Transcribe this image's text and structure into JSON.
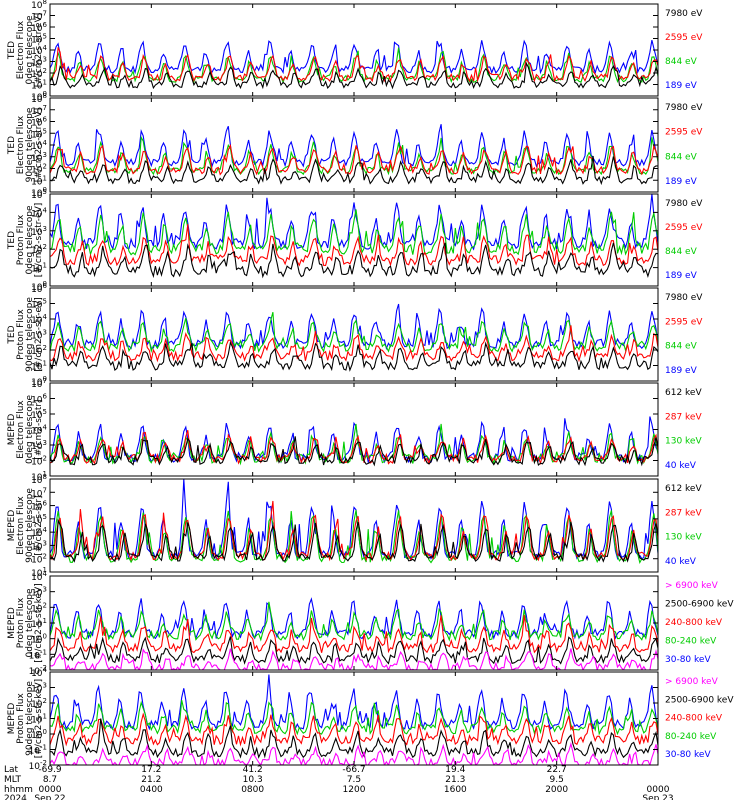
{
  "chart_data": [
    {
      "type": "line",
      "ylabel": [
        "TED",
        "Electron Flux",
        "0deg telescope",
        "[#/cm2-s-str-eV]"
      ],
      "yscale": "log",
      "ylim_exp": [
        0,
        8
      ],
      "ytick_exponents": [
        0,
        1,
        2,
        3,
        4,
        5,
        6,
        7,
        8
      ],
      "series": [
        {
          "name": "7980 eV",
          "color": "#000000",
          "base_exp": 1.0,
          "spread": 1.3
        },
        {
          "name": "2595 eV",
          "color": "#ff0000",
          "base_exp": 1.6,
          "spread": 1.8
        },
        {
          "name": "844 eV",
          "color": "#00cc00",
          "base_exp": 1.5,
          "spread": 2.0
        },
        {
          "name": "189 eV",
          "color": "#0000ff",
          "base_exp": 2.3,
          "spread": 2.3
        }
      ]
    },
    {
      "type": "line",
      "ylabel": [
        "TED",
        "Electron Flux",
        "90deg telescope",
        "[#/cm2-s-str-eV]"
      ],
      "yscale": "log",
      "ylim_exp": [
        0,
        8
      ],
      "ytick_exponents": [
        0,
        1,
        2,
        3,
        4,
        5,
        6,
        7,
        8
      ],
      "series": [
        {
          "name": "7980 eV",
          "color": "#000000",
          "base_exp": 1.0,
          "spread": 1.5
        },
        {
          "name": "2595 eV",
          "color": "#ff0000",
          "base_exp": 1.8,
          "spread": 2.0
        },
        {
          "name": "844 eV",
          "color": "#00cc00",
          "base_exp": 1.8,
          "spread": 2.2
        },
        {
          "name": "189 eV",
          "color": "#0000ff",
          "base_exp": 2.5,
          "spread": 2.6
        }
      ]
    },
    {
      "type": "line",
      "ylabel": [
        "TED",
        "Proton Flux",
        "0deg telescope",
        "[#/cm2-s-str-eV]"
      ],
      "yscale": "log",
      "ylim_exp": [
        0,
        5
      ],
      "ytick_exponents": [
        0,
        1,
        2,
        3,
        4,
        5
      ],
      "series": [
        {
          "name": "7980 eV",
          "color": "#000000",
          "base_exp": 0.8,
          "spread": 1.2
        },
        {
          "name": "2595 eV",
          "color": "#ff0000",
          "base_exp": 1.4,
          "spread": 1.2
        },
        {
          "name": "844 eV",
          "color": "#00cc00",
          "base_exp": 2.0,
          "spread": 1.8
        },
        {
          "name": "189 eV",
          "color": "#0000ff",
          "base_exp": 2.3,
          "spread": 2.0
        }
      ]
    },
    {
      "type": "line",
      "ylabel": [
        "TED",
        "Proton Flux",
        "90deg telescope",
        "[#/cm2-s-str-eV]"
      ],
      "yscale": "log",
      "ylim_exp": [
        0,
        6
      ],
      "ytick_exponents": [
        0,
        1,
        2,
        3,
        4,
        5,
        6
      ],
      "series": [
        {
          "name": "7980 eV",
          "color": "#000000",
          "base_exp": 1.0,
          "spread": 1.2
        },
        {
          "name": "2595 eV",
          "color": "#ff0000",
          "base_exp": 1.6,
          "spread": 1.2
        },
        {
          "name": "844 eV",
          "color": "#00cc00",
          "base_exp": 2.2,
          "spread": 1.6
        },
        {
          "name": "189 eV",
          "color": "#0000ff",
          "base_exp": 2.4,
          "spread": 2.0
        }
      ]
    },
    {
      "type": "line",
      "ylabel": [
        "MEPED",
        "Electron Flux",
        "0deg telescope",
        "[#/cm2-s-str]"
      ],
      "yscale": "log",
      "ylim_exp": [
        1,
        7
      ],
      "ytick_exponents": [
        1,
        2,
        3,
        4,
        5,
        6,
        7
      ],
      "series": [
        {
          "name": "612 keV",
          "color": "#000000",
          "base_exp": 2.0,
          "spread": 1.2
        },
        {
          "name": "287 keV",
          "color": "#ff0000",
          "base_exp": 2.1,
          "spread": 1.4
        },
        {
          "name": "130 keV",
          "color": "#00cc00",
          "base_exp": 2.1,
          "spread": 1.5
        },
        {
          "name": "40 keV",
          "color": "#0000ff",
          "base_exp": 2.2,
          "spread": 2.0
        }
      ]
    },
    {
      "type": "line",
      "ylabel": [
        "MEPED",
        "Electron Flux",
        "90deg telescope",
        "[#/cm2-s-str]"
      ],
      "yscale": "log",
      "ylim_exp": [
        1,
        8
      ],
      "ytick_exponents": [
        1,
        2,
        3,
        4,
        5,
        6,
        7,
        8
      ],
      "series": [
        {
          "name": "612 keV",
          "color": "#000000",
          "base_exp": 2.1,
          "spread": 2.4
        },
        {
          "name": "287 keV",
          "color": "#ff0000",
          "base_exp": 2.2,
          "spread": 3.0
        },
        {
          "name": "130 keV",
          "color": "#00cc00",
          "base_exp": 2.0,
          "spread": 3.4
        },
        {
          "name": "40 keV",
          "color": "#0000ff",
          "base_exp": 2.3,
          "spread": 3.8
        }
      ]
    },
    {
      "type": "line",
      "ylabel": [
        "MEPED",
        "Proton Flux",
        "0deg telescope",
        "[#/cm2-s-str-keV]"
      ],
      "yscale": "log",
      "ylim_exp": [
        -2,
        4
      ],
      "ytick_exponents": [
        -2,
        -1,
        0,
        1,
        2,
        3,
        4
      ],
      "series": [
        {
          "name": "> 6900 keV",
          "color": "#ff00ff",
          "base_exp": -1.9,
          "spread": 1.0
        },
        {
          "name": "2500-6900 keV",
          "color": "#000000",
          "base_exp": -1.3,
          "spread": 1.2
        },
        {
          "name": "240-800 keV",
          "color": "#ff0000",
          "base_exp": -0.6,
          "spread": 1.4
        },
        {
          "name": "80-240 keV",
          "color": "#00cc00",
          "base_exp": 0.2,
          "spread": 1.4
        },
        {
          "name": "30-80 keV",
          "color": "#0000ff",
          "base_exp": 0.3,
          "spread": 2.0
        }
      ]
    },
    {
      "type": "line",
      "ylabel": [
        "MEPED",
        "Proton Flux",
        "90deg telescope",
        "[#/cm2-s-str-keV]"
      ],
      "yscale": "log",
      "ylim_exp": [
        -2,
        4
      ],
      "ytick_exponents": [
        -2,
        -1,
        0,
        1,
        2,
        3,
        4
      ],
      "series": [
        {
          "name": "> 6900 keV",
          "color": "#ff00ff",
          "base_exp": -1.9,
          "spread": 1.0
        },
        {
          "name": "2500-6900 keV",
          "color": "#000000",
          "base_exp": -1.2,
          "spread": 1.3
        },
        {
          "name": "240-800 keV",
          "color": "#ff0000",
          "base_exp": -0.4,
          "spread": 1.4
        },
        {
          "name": "80-240 keV",
          "color": "#00cc00",
          "base_exp": 0.3,
          "spread": 1.5
        },
        {
          "name": "30-80 keV",
          "color": "#0000ff",
          "base_exp": 0.6,
          "spread": 2.2
        }
      ]
    }
  ],
  "x_axis": {
    "row_labels": [
      "Lat",
      "MLT",
      "hhmm",
      "2024"
    ],
    "columns": [
      {
        "lat": "-69.9",
        "mlt": "8.7",
        "hhmm": "0000",
        "date": "Sep 22"
      },
      {
        "lat": "17.2",
        "mlt": "21.2",
        "hhmm": "0400",
        "date": ""
      },
      {
        "lat": "41.2",
        "mlt": "10.3",
        "hhmm": "0800",
        "date": ""
      },
      {
        "lat": "-66.7",
        "mlt": "7.5",
        "hhmm": "1200",
        "date": ""
      },
      {
        "lat": "19.4",
        "mlt": "21.3",
        "hhmm": "1600",
        "date": ""
      },
      {
        "lat": "22.7",
        "mlt": "9.5",
        "hhmm": "2000",
        "date": ""
      },
      {
        "lat": "",
        "mlt": "",
        "hhmm": "0000",
        "date": "Sep 23"
      }
    ]
  }
}
